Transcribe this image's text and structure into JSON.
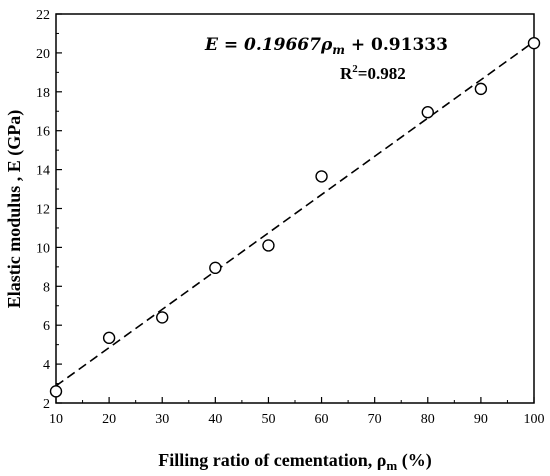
{
  "chart_data": {
    "type": "scatter",
    "title": "",
    "xlabel": {
      "main": "Filling ratio of cementation, ρ",
      "sub": "m",
      "tail": " (%)"
    },
    "ylabel": "Elastic modulus , E (GPa)",
    "xlim": [
      10,
      100
    ],
    "ylim": [
      2,
      22
    ],
    "xticks": [
      "10",
      "20",
      "30",
      "40",
      "50",
      "60",
      "70",
      "80",
      "90",
      "100"
    ],
    "yticks": [
      "2",
      "4",
      "6",
      "8",
      "10",
      "12",
      "14",
      "16",
      "18",
      "20",
      "22"
    ],
    "grid": false,
    "series": [
      {
        "marker": "open-circle",
        "x": [
          10,
          20,
          30,
          40,
          50,
          60,
          80,
          90,
          100
        ],
        "y": [
          2.6,
          5.35,
          6.4,
          8.95,
          10.1,
          13.65,
          16.95,
          18.15,
          20.5
        ]
      }
    ],
    "fit": {
      "style": "dashed",
      "slope": 0.19667,
      "intercept": 0.91333,
      "x_range": [
        10,
        100
      ]
    },
    "annotations": {
      "equation": {
        "lhs": "E = 0.19667",
        "rho": "ρ",
        "sub": "m",
        "rhs": " + 0.91333"
      },
      "r2": {
        "label": "R",
        "sup": "2",
        "value": "=0.982"
      }
    }
  }
}
